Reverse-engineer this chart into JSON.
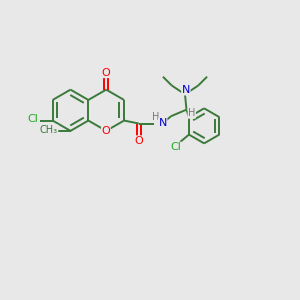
{
  "bg_color": "#e8e8e8",
  "bond_color": "#3a7a3a",
  "bond_width": 1.4,
  "atom_colors": {
    "O": "#ff0000",
    "N": "#0000cc",
    "Cl": "#22aa22",
    "H": "#777777",
    "C": "#3a7a3a"
  },
  "figsize": [
    3.0,
    3.0
  ],
  "dpi": 100,
  "xlim": [
    0,
    10
  ],
  "ylim": [
    0,
    10
  ]
}
